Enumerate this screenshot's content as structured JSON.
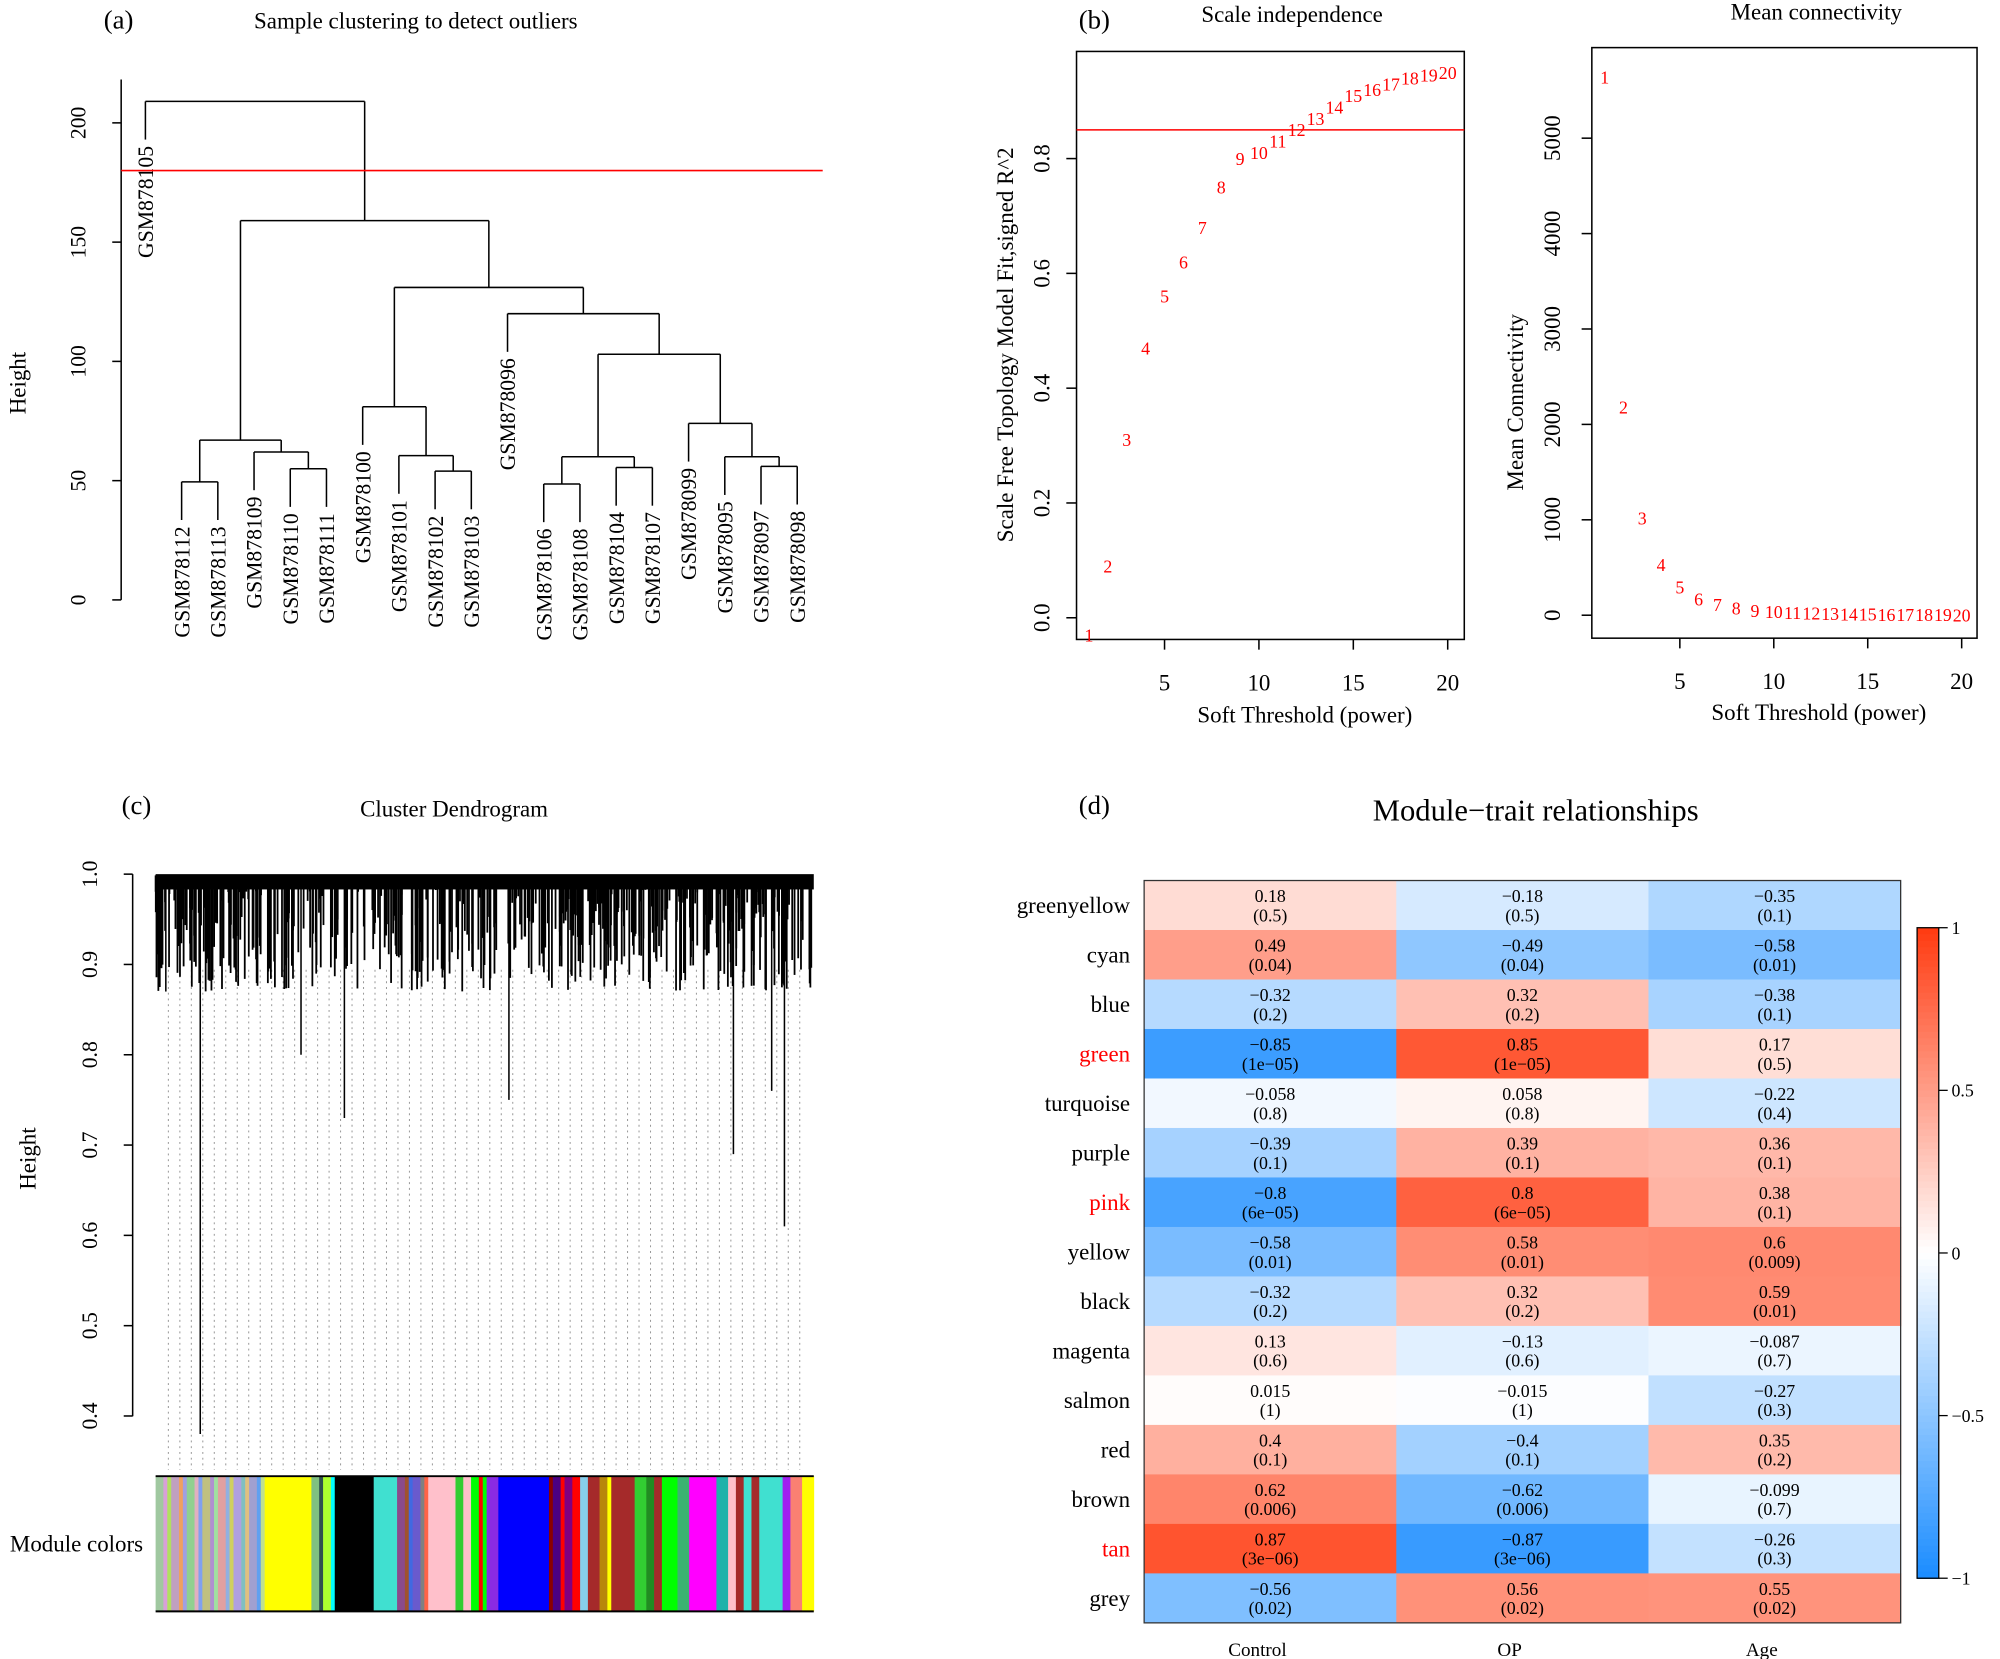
{
  "panels": {
    "a": "(a)",
    "b": "(b)",
    "c": "(c)",
    "d": "(d)"
  },
  "chart_data": [
    {
      "type": "dendrogram",
      "title": "Sample clustering to detect outliers",
      "xlabel": "",
      "ylabel": "Height",
      "yticks": [
        0,
        50,
        100,
        150,
        200
      ],
      "cut_height": 180,
      "cut_color": "#FF0000",
      "tree": {
        "h": 209,
        "c": [
          "GSM878105",
          {
            "h": 159,
            "c": [
              {
                "h": 67,
                "c": [
                  {
                    "h": 49.5,
                    "c": [
                      "GSM878112",
                      "GSM878113"
                    ]
                  },
                  {
                    "h": 62,
                    "c": [
                      "GSM878109",
                      {
                        "h": 55,
                        "c": [
                          "GSM878110",
                          "GSM878111"
                        ]
                      }
                    ]
                  }
                ]
              },
              {
                "h": 131,
                "c": [
                  {
                    "h": 81,
                    "c": [
                      "GSM878100",
                      {
                        "h": 60.5,
                        "c": [
                          "GSM878101",
                          {
                            "h": 54,
                            "c": [
                              "GSM878102",
                              "GSM878103"
                            ]
                          }
                        ]
                      }
                    ]
                  },
                  {
                    "h": 120,
                    "c": [
                      "GSM878096",
                      {
                        "h": 103,
                        "c": [
                          {
                            "h": 60,
                            "c": [
                              {
                                "h": 48.6,
                                "c": [
                                  "GSM878106",
                                  "GSM878108"
                                ]
                              },
                              {
                                "h": 55.5,
                                "c": [
                                  "GSM878104",
                                  "GSM878107"
                                ]
                              }
                            ]
                          },
                          {
                            "h": 74,
                            "c": [
                              "GSM878099",
                              {
                                "h": 60,
                                "c": [
                                  "GSM878095",
                                  {
                                    "h": 56,
                                    "c": [
                                      "GSM878097",
                                      "GSM878098"
                                    ]
                                  }
                                ]
                              }
                            ]
                          }
                        ]
                      }
                    ]
                  }
                ]
              }
            ]
          }
        ]
      }
    },
    {
      "type": "scatter",
      "title": "Scale independence",
      "xlabel": "Soft Threshold (power)",
      "ylabel": "Scale Free Topology Model Fit,signed R^2",
      "x": [
        1,
        2,
        3,
        4,
        5,
        6,
        7,
        8,
        9,
        10,
        11,
        12,
        13,
        14,
        15,
        16,
        17,
        18,
        19,
        20
      ],
      "y": [
        -0.03,
        0.09,
        0.31,
        0.47,
        0.56,
        0.62,
        0.68,
        0.75,
        0.8,
        0.81,
        0.83,
        0.85,
        0.87,
        0.89,
        0.91,
        0.92,
        0.93,
        0.94,
        0.945,
        0.95
      ],
      "point_labels": "power",
      "xticks": [
        5,
        10,
        15,
        20
      ],
      "yticks": [
        "0.0",
        "0.2",
        "0.4",
        "0.6",
        "0.8"
      ],
      "hline": 0.85,
      "color": "#FF0000"
    },
    {
      "type": "scatter",
      "title": "Mean connectivity",
      "xlabel": "Soft Threshold (power)",
      "ylabel": "Mean Connectivity",
      "x": [
        1,
        2,
        3,
        4,
        5,
        6,
        7,
        8,
        9,
        10,
        11,
        12,
        13,
        14,
        15,
        16,
        17,
        18,
        19,
        20
      ],
      "y": [
        5640,
        2180,
        1020,
        530,
        295,
        170,
        110,
        75,
        50,
        35,
        27,
        20,
        16,
        12,
        10,
        8,
        6,
        5,
        4,
        3
      ],
      "point_labels": "power",
      "xticks": [
        5,
        10,
        15,
        20
      ],
      "yticks": [
        0,
        1000,
        2000,
        3000,
        4000,
        5000
      ],
      "color": "#FF0000"
    },
    {
      "type": "dendrogram",
      "title": "Cluster Dendrogram",
      "ylabel": "Height",
      "yticks": [
        "0.4",
        "0.5",
        "0.6",
        "0.7",
        "0.8",
        "0.9",
        "1.0"
      ],
      "color_bar_label": "Module colors"
    },
    {
      "type": "heatmap",
      "title": "Module−trait relationships",
      "rows": [
        "greenyellow",
        "cyan",
        "blue",
        "green",
        "turquoise",
        "purple",
        "pink",
        "yellow",
        "black",
        "magenta",
        "salmon",
        "red",
        "brown",
        "tan",
        "grey"
      ],
      "highlighted_rows": [
        "green",
        "pink",
        "tan"
      ],
      "highlight_color": "#FF0000",
      "columns": [
        "Control",
        "OP",
        "Age"
      ],
      "correlations": [
        [
          0.18,
          -0.18,
          -0.35
        ],
        [
          0.49,
          -0.49,
          -0.58
        ],
        [
          -0.32,
          0.32,
          -0.38
        ],
        [
          -0.85,
          0.85,
          0.17
        ],
        [
          -0.058,
          0.058,
          -0.22
        ],
        [
          -0.39,
          0.39,
          0.36
        ],
        [
          -0.8,
          0.8,
          0.38
        ],
        [
          -0.58,
          0.58,
          0.6
        ],
        [
          -0.32,
          0.32,
          0.59
        ],
        [
          0.13,
          -0.13,
          -0.087
        ],
        [
          0.015,
          -0.015,
          -0.27
        ],
        [
          0.4,
          -0.4,
          0.35
        ],
        [
          0.62,
          -0.62,
          -0.099
        ],
        [
          0.87,
          -0.87,
          -0.26
        ],
        [
          -0.56,
          0.56,
          0.55
        ]
      ],
      "pvalues": [
        [
          "0.5",
          "0.5",
          "0.1"
        ],
        [
          "0.04",
          "0.04",
          "0.01"
        ],
        [
          "0.2",
          "0.2",
          "0.1"
        ],
        [
          "1e−05",
          "1e−05",
          "0.5"
        ],
        [
          "0.8",
          "0.8",
          "0.4"
        ],
        [
          "0.1",
          "0.1",
          "0.1"
        ],
        [
          "6e−05",
          "6e−05",
          "0.1"
        ],
        [
          "0.01",
          "0.01",
          "0.009"
        ],
        [
          "0.2",
          "0.2",
          "0.01"
        ],
        [
          "0.6",
          "0.6",
          "0.7"
        ],
        [
          "1",
          "1",
          "0.3"
        ],
        [
          "0.1",
          "0.1",
          "0.2"
        ],
        [
          "0.006",
          "0.006",
          "0.7"
        ],
        [
          "3e−06",
          "3e−06",
          "0.3"
        ],
        [
          "0.02",
          "0.02",
          "0.02"
        ]
      ],
      "zlim": [
        -1,
        1
      ],
      "colorbar_ticks": [
        "1",
        "0.5",
        "0",
        "−0.5",
        "−1"
      ],
      "low_color": "#1A8CFF",
      "mid_color": "#FFFFFF",
      "high_color": "#FF3A10"
    }
  ]
}
